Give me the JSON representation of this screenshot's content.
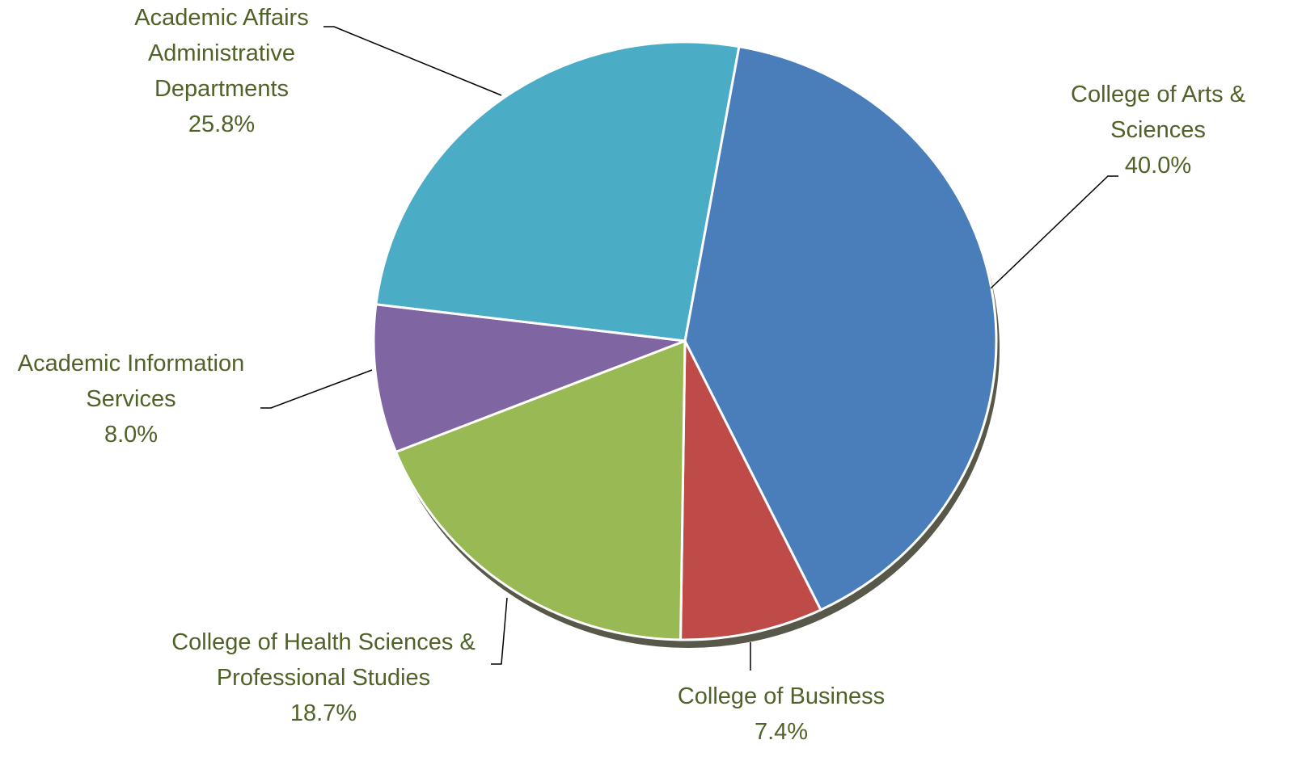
{
  "chart_data": {
    "type": "pie",
    "categories": [
      "College of Arts & Sciences",
      "College of Business",
      "College of Health Sciences & Professional Studies",
      "Academic Information Services",
      "Academic Affairs Administrative Departments"
    ],
    "values": [
      40.0,
      7.4,
      18.7,
      8.0,
      25.8
    ],
    "value_labels": [
      "40.0%",
      "7.4%",
      "18.7%",
      "8.0%",
      "25.8%"
    ],
    "colors": [
      "#4a7ebb",
      "#be4b48",
      "#98b954",
      "#7f65a1",
      "#4bacc6"
    ]
  }
}
